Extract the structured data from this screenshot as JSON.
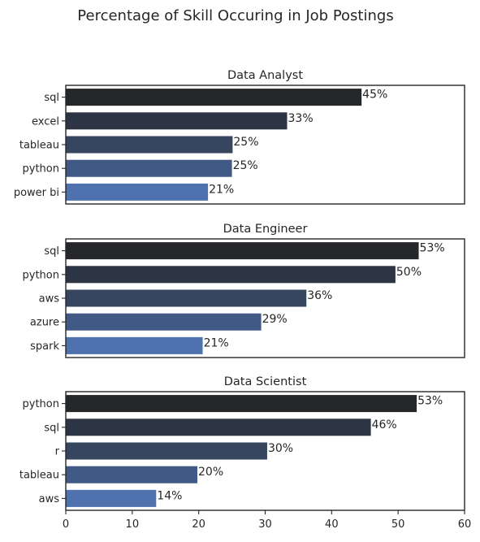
{
  "chart_data": {
    "type": "bar",
    "orientation": "horizontal",
    "title": "Percentage of Skill Occuring in Job Postings",
    "xlim": [
      0,
      60
    ],
    "xticks": [
      0,
      10,
      20,
      30,
      40,
      50,
      60
    ],
    "xlabel": "",
    "ylabel": "",
    "grid": false,
    "bar_colors": [
      "#26272b",
      "#2d3444",
      "#37465f",
      "#415a85",
      "#4f72ae"
    ],
    "panels": [
      {
        "title": "Data Analyst",
        "categories": [
          "sql",
          "excel",
          "tableau",
          "python",
          "power bi"
        ],
        "values": [
          44.5,
          33.3,
          25.1,
          25.0,
          21.4
        ],
        "labels": [
          "45%",
          "33%",
          "25%",
          "25%",
          "21%"
        ]
      },
      {
        "title": "Data Engineer",
        "categories": [
          "sql",
          "python",
          "aws",
          "azure",
          "spark"
        ],
        "values": [
          53.1,
          49.6,
          36.2,
          29.4,
          20.6
        ],
        "labels": [
          "53%",
          "50%",
          "36%",
          "29%",
          "21%"
        ]
      },
      {
        "title": "Data Scientist",
        "categories": [
          "python",
          "sql",
          "r",
          "tableau",
          "aws"
        ],
        "values": [
          52.8,
          45.9,
          30.3,
          19.8,
          13.6
        ],
        "labels": [
          "53%",
          "46%",
          "30%",
          "20%",
          "14%"
        ]
      }
    ]
  }
}
